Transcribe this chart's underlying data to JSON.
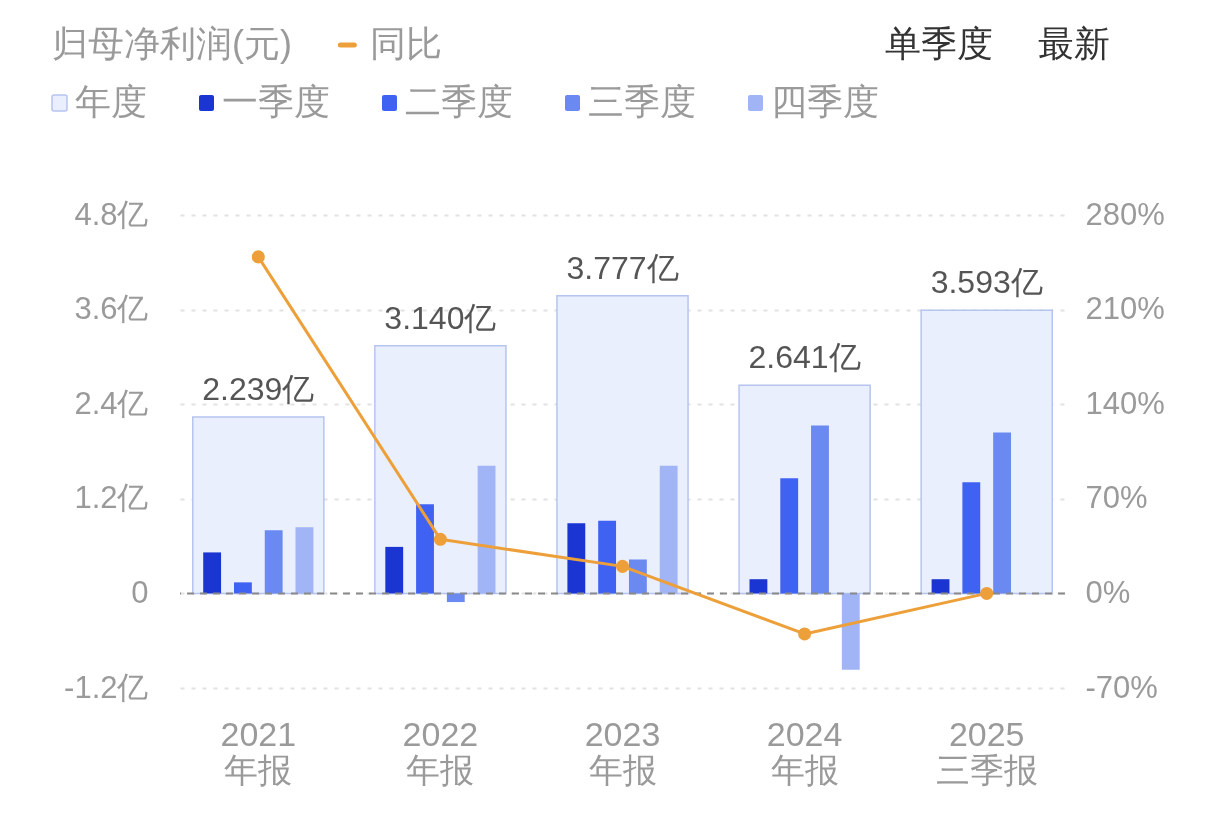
{
  "chart_data": {
    "type": "bar",
    "title": "归母净利润(元)",
    "annotations": [
      "单季度",
      "最新"
    ],
    "categories": [
      "2021\n年报",
      "2022\n年报",
      "2023\n年报",
      "2024\n年报",
      "2025\n三季报"
    ],
    "series": [
      {
        "name": "年度",
        "color": "#e9effc",
        "values": [
          2.239,
          3.14,
          3.777,
          2.641,
          3.593
        ],
        "value_labels": [
          "2.239亿",
          "3.140亿",
          "3.777亿",
          "2.641亿",
          "3.593亿"
        ]
      },
      {
        "name": "一季度",
        "color": "#1a35d2",
        "values": [
          0.52,
          0.59,
          0.89,
          0.18,
          0.18
        ]
      },
      {
        "name": "二季度",
        "color": "#4062f2",
        "values": [
          0.14,
          1.13,
          0.92,
          1.46,
          1.41
        ]
      },
      {
        "name": "三季度",
        "color": "#6a89f1",
        "values": [
          0.8,
          -0.11,
          0.43,
          2.13,
          2.04
        ]
      },
      {
        "name": "四季度",
        "color": "#a0b4f6",
        "values": [
          0.84,
          1.62,
          1.62,
          -0.97,
          null
        ]
      },
      {
        "name": "同比",
        "type": "line",
        "axis": "y2",
        "color": "#eda03a",
        "marker": "circle",
        "values": [
          249,
          40,
          20,
          -30,
          0
        ]
      }
    ],
    "ylim": [
      -1.2,
      4.8
    ],
    "yticks": [
      {
        "value": -1.2,
        "label": "-1.2亿"
      },
      0,
      {
        "value": 1.2,
        "label": "1.2亿"
      },
      {
        "value": 2.4,
        "label": "2.4亿"
      },
      {
        "value": 3.6,
        "label": "3.6亿"
      },
      {
        "value": 4.8,
        "label": "4.8亿"
      }
    ],
    "y2lim": [
      -70,
      280
    ],
    "y2ticks": [
      {
        "value": -70,
        "label": "-70%"
      },
      {
        "value": 0,
        "label": "0%"
      },
      {
        "value": 70,
        "label": "70%"
      },
      {
        "value": 140,
        "label": "140%"
      },
      {
        "value": 210,
        "label": "210%"
      },
      {
        "value": 280,
        "label": "280%"
      }
    ],
    "grid": "y",
    "legend": "top left",
    "ref_lines": [
      {
        "axis": "y",
        "value": 0,
        "color": "#8a8a8a",
        "line_style": "dashed"
      }
    ]
  }
}
